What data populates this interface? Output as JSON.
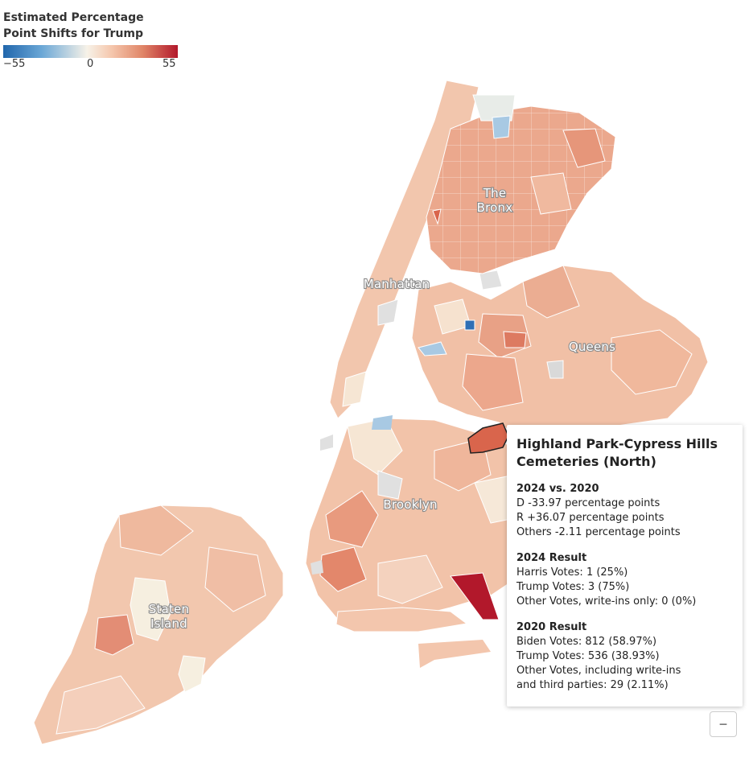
{
  "legend": {
    "title_line1": "Estimated Percentage",
    "title_line2": "Point Shifts for Trump",
    "min_label": "−55",
    "mid_label": "0",
    "max_label": "55",
    "scale": {
      "min": -55,
      "mid": 0,
      "max": 55
    },
    "colors": {
      "negative": "#2166ac",
      "neutral": "#f7f2e8",
      "positive": "#b2182b"
    }
  },
  "boroughs": {
    "bronx_line1": "The",
    "bronx_line2": "Bronx",
    "manhattan": "Manhattan",
    "queens": "Queens",
    "brooklyn": "Brooklyn",
    "staten_line1": "Staten",
    "staten_line2": "Island"
  },
  "tooltip": {
    "title_line1": "Highland Park-Cypress Hills",
    "title_line2": "Cemeteries (North)",
    "shift_heading": "2024 vs. 2020",
    "shift_d": "D -33.97 percentage points",
    "shift_r": "R +36.07 percentage points",
    "shift_others": "Others -2.11 percentage points",
    "result2024_heading": "2024 Result",
    "harris": "Harris Votes: 1 (25%)",
    "trump2024": "Trump Votes: 3 (75%)",
    "other2024": "Other Votes, write-ins only: 0 (0%)",
    "result2020_heading": "2020 Result",
    "biden": "Biden Votes: 812 (58.97%)",
    "trump2020": "Trump Votes: 536 (38.93%)",
    "other2020_line1": "Other Votes, including write-ins",
    "other2020_line2": "and third parties: 29 (2.11%)"
  },
  "controls": {
    "zoom_out": "−"
  }
}
